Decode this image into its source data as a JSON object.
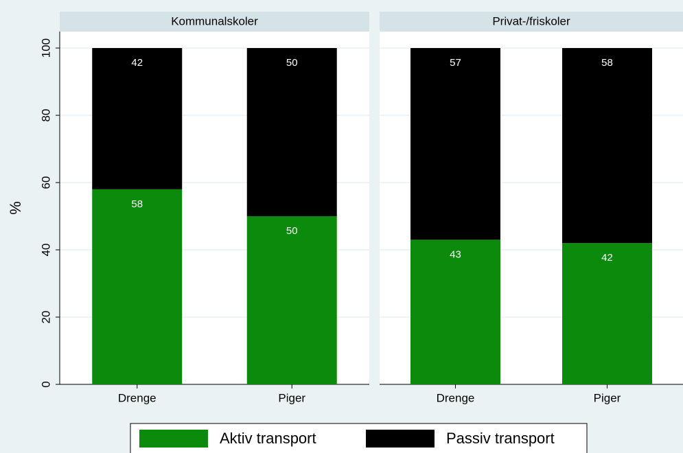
{
  "chart_data": [
    {
      "type": "bar",
      "stacked": true,
      "title": "Kommunalskoler",
      "ylabel": "%",
      "categories": [
        "Drenge",
        "Piger"
      ],
      "series": [
        {
          "name": "Aktiv transport",
          "color": "#0b8a0b",
          "values": [
            58,
            50
          ]
        },
        {
          "name": "Passiv transport",
          "color": "#000000",
          "values": [
            42,
            50
          ]
        }
      ],
      "ylim": [
        0,
        100
      ],
      "yticks": [
        0,
        20,
        40,
        60,
        80,
        100
      ],
      "grid": true,
      "legend": "bottom"
    },
    {
      "type": "bar",
      "stacked": true,
      "title": "Privat-/friskoler",
      "categories": [
        "Drenge",
        "Piger"
      ],
      "series": [
        {
          "name": "Aktiv transport",
          "color": "#0b8a0b",
          "values": [
            43,
            42
          ]
        },
        {
          "name": "Passiv transport",
          "color": "#000000",
          "values": [
            57,
            58
          ]
        }
      ],
      "ylim": [
        0,
        100
      ],
      "yticks": [
        0,
        20,
        40,
        60,
        80,
        100
      ],
      "grid": true
    }
  ]
}
